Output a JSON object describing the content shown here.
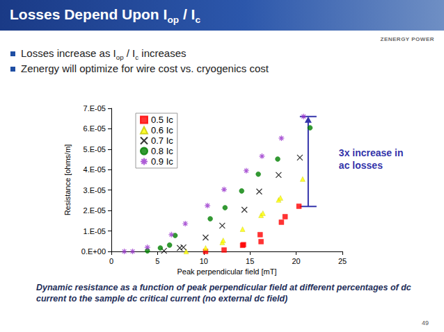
{
  "slide": {
    "title": [
      {
        "text": "Losses Depend Upon I"
      },
      {
        "text": "op",
        "sub": true
      },
      {
        "text": " / I"
      },
      {
        "text": "c",
        "sub": true
      }
    ],
    "logo": "ZENERGY POWER",
    "bullets": [
      [
        {
          "text": "Losses increase as I"
        },
        {
          "text": "op",
          "sub": true
        },
        {
          "text": " / I"
        },
        {
          "text": "c",
          "sub": true
        },
        {
          "text": " increases"
        }
      ],
      [
        {
          "text": "Zenergy will optimize for wire cost vs. cryogenics cost"
        }
      ]
    ],
    "caption": "Dynamic resistance as a function of peak perpendicular field at different percentages of dc current to the sample dc critical current (no external dc field)",
    "page": "49"
  },
  "chart_data": {
    "type": "scatter",
    "x_label": "Peak perpendicular field [mT]",
    "y_label": "Resistance [ohms/m]",
    "xlim": [
      0,
      25
    ],
    "xticks": [
      0,
      5,
      10,
      15,
      20,
      25
    ],
    "ylim": [
      0,
      7e-05
    ],
    "yticks": [
      {
        "value": 0,
        "label": "0.E+00"
      },
      {
        "value": 1e-05,
        "label": "1.E-05"
      },
      {
        "value": 2e-05,
        "label": "2.E-05"
      },
      {
        "value": 3e-05,
        "label": "3.E-05"
      },
      {
        "value": 4e-05,
        "label": "4.E-05"
      },
      {
        "value": 5e-05,
        "label": "5.E-05"
      },
      {
        "value": 6e-05,
        "label": "6.E-05"
      },
      {
        "value": 7e-05,
        "label": "7.E-05"
      }
    ],
    "grid": false,
    "legend": "upper left",
    "series": [
      {
        "name": "0.5 Ic",
        "color": "#ff0000",
        "marker": "square",
        "x": [
          10.2,
          12.2,
          14.2,
          14.3,
          16.2,
          16.1,
          18.4,
          18.8,
          20.3
        ],
        "values": [
          0,
          7e-07,
          3e-06,
          3.3e-06,
          4.8e-06,
          8.2e-06,
          1.43e-05,
          1.7e-05,
          2.21e-05
        ]
      },
      {
        "name": "0.6 Ic",
        "color": "#ffff00",
        "marker": "triangle",
        "x": [
          8.1,
          10.2,
          12.0,
          12.1,
          14.2,
          16.2,
          16.4,
          18.1,
          18.3,
          20.7
        ],
        "values": [
          0,
          1.7e-06,
          4.4e-06,
          5.4e-06,
          1.09e-05,
          1.77e-05,
          1.87e-05,
          2.52e-05,
          2.62e-05,
          3.54e-05
        ]
      },
      {
        "name": "0.7 Ic",
        "color": "#000000",
        "marker": "x",
        "x": [
          5.7,
          7.4,
          7.8,
          10.2,
          12.0,
          14.4,
          16.0,
          18.1,
          20.4
        ],
        "values": [
          3e-07,
          1.7e-06,
          2e-06,
          6.8e-06,
          1.26e-05,
          2.04e-05,
          2.93e-05,
          3.74e-05,
          4.59e-05
        ]
      },
      {
        "name": "0.8 Ic",
        "color": "#008000",
        "marker": "circle",
        "x": [
          3.9,
          5.3,
          6.3,
          6.9,
          10.7,
          12.3,
          14.1,
          15.9,
          18.0,
          21.5
        ],
        "values": [
          3e-07,
          1.7e-06,
          3.1e-06,
          7.8e-06,
          1.6e-05,
          2.14e-05,
          2.96e-05,
          3.78e-05,
          4.52e-05,
          6.05e-05
        ]
      },
      {
        "name": "0.9 Ic",
        "color": "#9933cc",
        "marker": "asterisk",
        "x": [
          1.4,
          2.3,
          3.9,
          6.5,
          8.0,
          10.4,
          12.2,
          14.6,
          16.3,
          18.4,
          20.8
        ],
        "values": [
          0,
          0,
          2e-06,
          8.2e-06,
          1.36e-05,
          2.24e-05,
          3.03e-05,
          3.95e-05,
          4.66e-05,
          5.54e-05,
          6.6e-05
        ]
      }
    ],
    "annotation": {
      "text": "3x increase in ac losses",
      "color": "#3333aa",
      "x": 21.3,
      "from": 2.2e-05,
      "to": 6.6e-05
    }
  }
}
